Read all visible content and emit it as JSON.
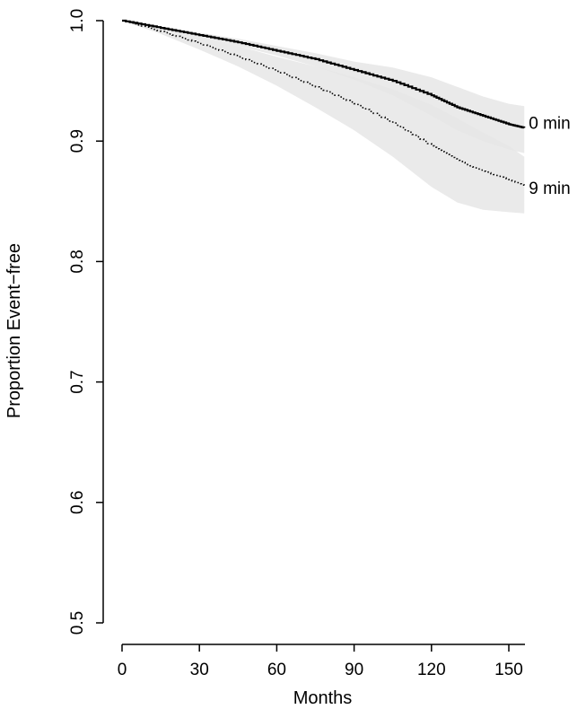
{
  "chart_data": {
    "type": "line",
    "xlabel": "Months",
    "ylabel": "Proportion Event−free",
    "xlim": [
      0,
      156
    ],
    "ylim": [
      0.5,
      1.0
    ],
    "x_ticks": [
      0,
      30,
      60,
      90,
      120,
      150
    ],
    "y_ticks": [
      0.5,
      0.6,
      0.7,
      0.8,
      0.9,
      1.0
    ],
    "x_tick_labels": [
      "0",
      "30",
      "60",
      "90",
      "120",
      "150"
    ],
    "y_tick_labels": [
      "0.5",
      "0.6",
      "0.7",
      "0.8",
      "0.9",
      "1.0"
    ],
    "grid": false,
    "band_color": "#e6e6e6",
    "series": [
      {
        "name": "0 min",
        "style": "solid",
        "color": "#000000",
        "x": [
          0,
          15,
          30,
          45,
          60,
          75,
          90,
          105,
          120,
          130,
          140,
          150,
          156
        ],
        "y": [
          1.0,
          0.994,
          0.988,
          0.982,
          0.975,
          0.968,
          0.959,
          0.95,
          0.938,
          0.928,
          0.921,
          0.914,
          0.911
        ],
        "lower": [
          1.0,
          0.993,
          0.986,
          0.979,
          0.971,
          0.962,
          0.951,
          0.938,
          0.921,
          0.909,
          0.9,
          0.893,
          0.89
        ],
        "upper": [
          1.0,
          0.995,
          0.99,
          0.985,
          0.979,
          0.973,
          0.966,
          0.961,
          0.953,
          0.945,
          0.937,
          0.931,
          0.929
        ]
      },
      {
        "name": "9 min",
        "style": "dotted",
        "color": "#000000",
        "x": [
          0,
          15,
          30,
          45,
          60,
          75,
          90,
          105,
          120,
          130,
          140,
          150,
          156
        ],
        "y": [
          1.0,
          0.991,
          0.981,
          0.97,
          0.958,
          0.945,
          0.931,
          0.915,
          0.896,
          0.884,
          0.875,
          0.868,
          0.863
        ],
        "lower": [
          1.0,
          0.989,
          0.976,
          0.962,
          0.946,
          0.928,
          0.909,
          0.887,
          0.862,
          0.849,
          0.843,
          0.841,
          0.84
        ],
        "upper": [
          1.0,
          0.994,
          0.986,
          0.979,
          0.97,
          0.962,
          0.953,
          0.943,
          0.93,
          0.919,
          0.907,
          0.896,
          0.887
        ]
      }
    ]
  }
}
